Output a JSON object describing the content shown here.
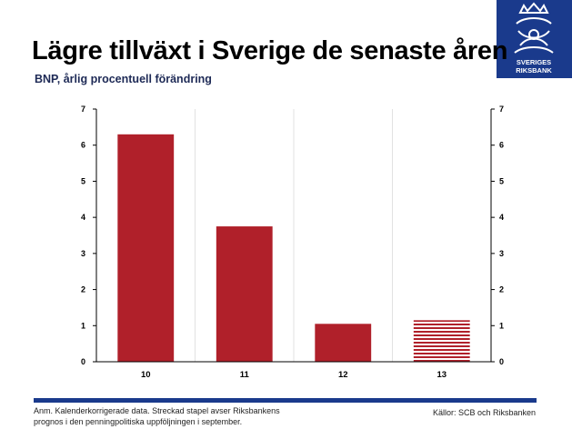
{
  "header": {
    "title": "Lägre tillväxt i Sverige de senaste åren",
    "subtitle": "BNP, årlig procentuell förändring"
  },
  "logo": {
    "text_line1": "SVERIGES",
    "text_line2": "RIKSBANK",
    "color": "#1a3a8c"
  },
  "footer": {
    "note_line1": "Anm. Kalenderkorrigerade data. Streckad stapel avser Riksbankens",
    "note_line2": "prognos i den penningpolitiska uppföljningen i september.",
    "source": "Källor: SCB och Riksbanken"
  },
  "chart_data": {
    "type": "bar",
    "categories": [
      "10",
      "11",
      "12",
      "13"
    ],
    "values": [
      6.3,
      3.75,
      1.05,
      1.15
    ],
    "forecast": [
      false,
      false,
      false,
      true
    ],
    "ylim": [
      0,
      7
    ],
    "yticks": [
      0,
      1,
      2,
      3,
      4,
      5,
      6,
      7
    ],
    "y_axis_left": true,
    "y_axis_right": true,
    "grid": "vertical",
    "bar_color": "#b0202a",
    "title": "",
    "xlabel": "",
    "ylabel": ""
  }
}
